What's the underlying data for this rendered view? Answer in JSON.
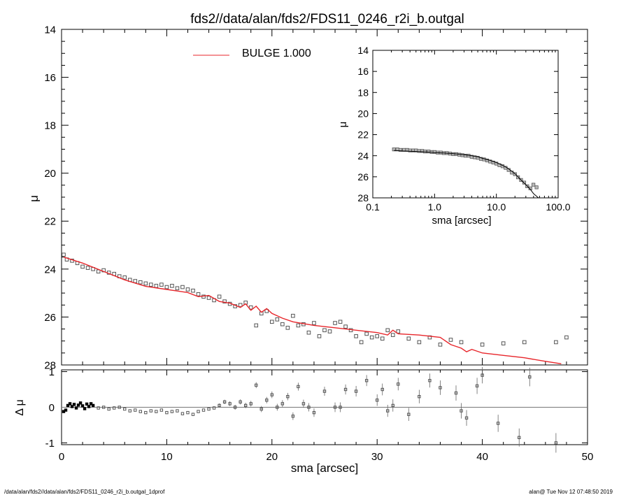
{
  "title": "fds2//data/alan/fds2/FDS11_0246_r2i_b.outgal",
  "footer": {
    "left": "/data/alan/fds2//data/alan/fds2/FDS11_0246_r2i_b.outgal_1dprof",
    "right": "alan@  Tue Nov 12 07:48:50 2019"
  },
  "colors": {
    "model": "#e8262b",
    "data": "#555555",
    "axis": "#000000"
  },
  "chart_data": [
    {
      "id": "main-profile",
      "type": "scatter",
      "xlabel": "sma [arcsec]",
      "ylabel": "μ",
      "xlim": [
        0,
        50
      ],
      "ylim": [
        28,
        14
      ],
      "xticks": [
        0,
        10,
        20,
        30,
        40,
        50
      ],
      "yticks": [
        14,
        16,
        18,
        20,
        22,
        24,
        26,
        28
      ],
      "legend": {
        "label": "BULGE  1.000",
        "placement": "top-left"
      },
      "model": {
        "name": "BULGE  1.000",
        "x": [
          0.2,
          2,
          4,
          6,
          8,
          10,
          12,
          13,
          14,
          15,
          16,
          17,
          17.5,
          18,
          18.5,
          19,
          19.5,
          20,
          21,
          22,
          24,
          26,
          28,
          30,
          31,
          31.5,
          32,
          34,
          36,
          37,
          38,
          38.5,
          39,
          40,
          42,
          44,
          46,
          47.5
        ],
        "y": [
          23.5,
          23.75,
          24.1,
          24.45,
          24.72,
          24.85,
          24.98,
          25.15,
          25.1,
          25.35,
          25.42,
          25.6,
          25.45,
          25.72,
          25.55,
          25.8,
          25.65,
          25.85,
          26.05,
          26.2,
          26.35,
          26.45,
          26.55,
          26.65,
          26.75,
          26.55,
          26.7,
          26.75,
          26.85,
          27.15,
          27.3,
          27.45,
          27.35,
          27.5,
          27.6,
          27.7,
          27.85,
          27.95
        ]
      },
      "points": {
        "x": [
          0.2,
          0.5,
          1.0,
          1.5,
          2.0,
          2.5,
          3.0,
          3.5,
          4.0,
          4.5,
          5.0,
          5.5,
          6.0,
          6.5,
          7.0,
          7.5,
          8.0,
          8.5,
          9.0,
          9.5,
          10.0,
          10.5,
          11.0,
          11.5,
          12.0,
          12.5,
          13.0,
          13.5,
          14.0,
          14.5,
          15.0,
          15.5,
          16.0,
          16.5,
          17.0,
          17.5,
          18.0,
          18.5,
          19.0,
          19.5,
          20.0,
          20.5,
          21.0,
          21.5,
          22.0,
          22.5,
          23.0,
          23.5,
          24.0,
          24.5,
          25.0,
          25.5,
          26.0,
          26.5,
          27.0,
          27.5,
          28.0,
          28.5,
          29.0,
          29.5,
          30.0,
          30.5,
          31.0,
          31.5,
          32.0,
          33.0,
          34.0,
          35.0,
          36.0,
          37.0,
          38.0,
          40.0,
          42.0,
          44.0,
          47.0,
          48.0
        ],
        "y": [
          23.4,
          23.6,
          23.65,
          23.75,
          23.9,
          23.95,
          24.0,
          24.1,
          24.05,
          24.15,
          24.2,
          24.3,
          24.35,
          24.45,
          24.5,
          24.55,
          24.6,
          24.65,
          24.7,
          24.65,
          24.75,
          24.7,
          24.8,
          24.75,
          24.85,
          24.9,
          25.05,
          25.15,
          25.2,
          25.3,
          25.15,
          25.35,
          25.45,
          25.55,
          25.5,
          25.4,
          25.6,
          26.35,
          25.85,
          25.75,
          26.2,
          26.1,
          26.3,
          26.45,
          25.95,
          26.35,
          26.3,
          26.65,
          26.25,
          26.8,
          26.55,
          26.6,
          26.25,
          26.2,
          26.4,
          26.55,
          26.8,
          27.05,
          26.7,
          26.85,
          26.8,
          26.9,
          26.55,
          26.75,
          26.6,
          26.9,
          27.05,
          26.85,
          27.15,
          26.95,
          27.05,
          27.15,
          27.1,
          27.05,
          27.05,
          26.85
        ]
      }
    },
    {
      "id": "inset-profile",
      "type": "scatter",
      "xlabel": "sma [arcsec]",
      "ylabel": "μ",
      "xscale": "log",
      "xlim": [
        0.1,
        100
      ],
      "ylim": [
        28,
        14
      ],
      "xticks": [
        0.1,
        1,
        10,
        100
      ],
      "xticklabels": [
        "0.1",
        "1.0",
        "10.0",
        "100.0"
      ],
      "yticks": [
        14,
        16,
        18,
        20,
        22,
        24,
        26,
        28
      ],
      "model": {
        "x": [
          0.22,
          0.3,
          0.5,
          0.8,
          1.0,
          1.5,
          2.0,
          3.0,
          4.0,
          5.0,
          6.0,
          8.0,
          10,
          12,
          15,
          20,
          25,
          30,
          35,
          40,
          48
        ],
        "y": [
          23.5,
          23.55,
          23.6,
          23.65,
          23.7,
          23.75,
          23.8,
          23.9,
          24.0,
          24.1,
          24.25,
          24.45,
          24.65,
          24.85,
          25.15,
          25.7,
          26.3,
          26.75,
          27.15,
          27.6,
          28.0
        ]
      },
      "points": {
        "x": [
          0.22,
          0.25,
          0.28,
          0.32,
          0.36,
          0.4,
          0.45,
          0.5,
          0.56,
          0.63,
          0.7,
          0.8,
          0.9,
          1.0,
          1.12,
          1.26,
          1.41,
          1.58,
          1.78,
          2.0,
          2.24,
          2.51,
          2.82,
          3.16,
          3.55,
          3.98,
          4.47,
          5.01,
          5.62,
          6.31,
          7.08,
          7.94,
          8.91,
          10.0,
          11.2,
          12.6,
          14.1,
          15.8,
          17.8,
          20.0,
          22.4,
          25.1,
          28.2,
          31.6,
          35.5,
          39.8,
          44.7
        ],
        "y": [
          23.4,
          23.4,
          23.45,
          23.45,
          23.45,
          23.5,
          23.5,
          23.5,
          23.55,
          23.55,
          23.6,
          23.6,
          23.65,
          23.65,
          23.7,
          23.7,
          23.75,
          23.75,
          23.8,
          23.85,
          23.85,
          23.9,
          23.95,
          24.0,
          24.0,
          24.1,
          24.15,
          24.2,
          24.3,
          24.35,
          24.45,
          24.55,
          24.65,
          24.75,
          24.9,
          25.0,
          25.15,
          25.35,
          25.6,
          25.75,
          26.05,
          26.3,
          26.55,
          26.9,
          27.1,
          26.75,
          27.0
        ]
      }
    },
    {
      "id": "residuals",
      "type": "scatter",
      "xlabel": "sma [arcsec]",
      "ylabel": "Δ μ",
      "xlim": [
        0,
        50
      ],
      "ylim": [
        -1.05,
        1.05
      ],
      "xticks": [
        0,
        10,
        20,
        30,
        40,
        50
      ],
      "yticks": [
        -1,
        0,
        1
      ],
      "zero_line": 0,
      "points": {
        "x": [
          0.2,
          0.4,
          0.6,
          0.8,
          1.0,
          1.2,
          1.4,
          1.6,
          1.8,
          2.0,
          2.2,
          2.4,
          2.6,
          2.8,
          3.0,
          3.5,
          4.0,
          4.5,
          5.0,
          5.5,
          6.0,
          6.5,
          7.0,
          7.5,
          8.0,
          8.5,
          9.0,
          9.5,
          10.0,
          10.5,
          11.0,
          11.5,
          12.0,
          12.5,
          13.0,
          13.5,
          14.0,
          14.5,
          15.0,
          15.5,
          16.0,
          16.5,
          17.0,
          17.5,
          18.0,
          18.5,
          19.0,
          19.5,
          20.0,
          20.5,
          21.0,
          21.5,
          22.0,
          22.5,
          23.0,
          23.5,
          24.0,
          25.0,
          26.0,
          26.5,
          27.0,
          28.0,
          29.0,
          30.0,
          30.5,
          31.0,
          31.5,
          32.0,
          33.0,
          34.0,
          35.0,
          36.0,
          37.5,
          38.0,
          38.5,
          39.5,
          40.0,
          41.5,
          43.5,
          44.5,
          47.0
        ],
        "y": [
          -0.12,
          -0.08,
          0.05,
          0.1,
          0.02,
          0.08,
          -0.02,
          0.06,
          0.12,
          0.04,
          -0.04,
          0.09,
          0.02,
          0.1,
          0.05,
          -0.02,
          0.0,
          -0.05,
          -0.02,
          0.0,
          -0.05,
          -0.1,
          -0.08,
          -0.12,
          -0.15,
          -0.1,
          -0.12,
          -0.08,
          -0.15,
          -0.12,
          -0.1,
          -0.18,
          -0.15,
          -0.2,
          -0.12,
          -0.08,
          -0.05,
          -0.02,
          0.05,
          0.15,
          0.1,
          0.0,
          0.15,
          0.05,
          0.1,
          0.62,
          -0.05,
          0.2,
          0.35,
          0.0,
          0.1,
          0.3,
          -0.25,
          0.58,
          0.1,
          0.0,
          -0.15,
          0.45,
          0.0,
          0.0,
          0.5,
          0.45,
          0.75,
          0.2,
          0.5,
          -0.1,
          0.05,
          0.65,
          -0.2,
          0.3,
          0.75,
          0.55,
          0.4,
          -0.1,
          -0.3,
          0.6,
          0.9,
          -0.45,
          -0.85,
          0.85,
          -1.0
        ]
      }
    }
  ]
}
